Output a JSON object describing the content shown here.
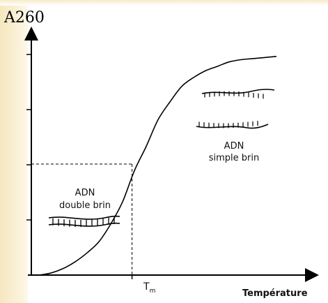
{
  "chart_data": {
    "type": "line",
    "title": "",
    "ylabel": "A260",
    "xlabel": "Température",
    "x_tick_labels": [
      {
        "main": "T",
        "sub": "m"
      }
    ],
    "y_ticks_unlabeled": 5,
    "grid": false,
    "series": [
      {
        "x": [
          0,
          0.05,
          0.1,
          0.15,
          0.2,
          0.25,
          0.3,
          0.35,
          0.4,
          0.45,
          0.5,
          0.55,
          0.6,
          0.65,
          0.7,
          0.75,
          0.8,
          0.85,
          0.9,
          0.95,
          1.0
        ],
        "y": [
          0.0,
          0.01,
          0.03,
          0.06,
          0.1,
          0.15,
          0.23,
          0.33,
          0.47,
          0.58,
          0.7,
          0.78,
          0.85,
          0.89,
          0.92,
          0.94,
          0.96,
          0.97,
          0.975,
          0.98,
          0.985
        ]
      }
    ],
    "tm_marker": {
      "x": 0.39,
      "y": 0.5
    },
    "annotations": [
      {
        "line1": "ADN",
        "line2": "double brin"
      },
      {
        "line1": "ADN",
        "line2": "simple brin"
      }
    ]
  }
}
